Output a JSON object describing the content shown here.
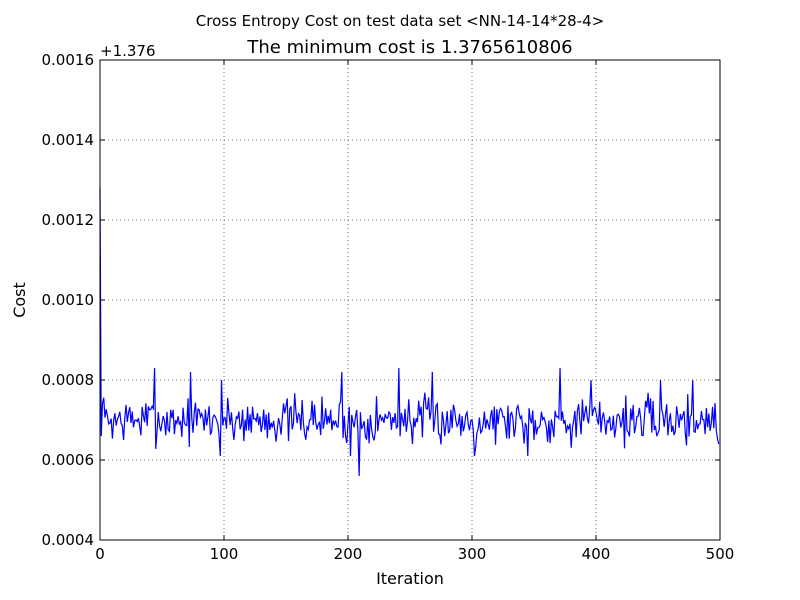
{
  "chart_data": {
    "type": "line",
    "suptitle": "Cross Entropy Cost on test data set <NN-14-14*28-4>",
    "title": "The minimum cost is 1.3765610806",
    "xlabel": "Iteration",
    "ylabel": "Cost",
    "offset_label": "+1.376",
    "xlim": [
      0,
      500
    ],
    "ylim": [
      0.0004,
      0.0016
    ],
    "xticks": [
      0,
      100,
      200,
      300,
      400,
      500
    ],
    "xtick_labels": [
      "0",
      "100",
      "200",
      "300",
      "400",
      "500"
    ],
    "yticks": [
      0.0004,
      0.0006,
      0.0008,
      0.001,
      0.0012,
      0.0014,
      0.0016
    ],
    "ytick_labels": [
      "0.0004",
      "0.0006",
      "0.0008",
      "0.0010",
      "0.0012",
      "0.0014",
      "0.0016"
    ],
    "grid": true,
    "grid_style": "dotted",
    "line_color": "#0000ff",
    "noise": {
      "count": 500,
      "mean": 0.0007,
      "amplitude": 8.5e-05,
      "seed": 7
    },
    "anchors": [
      {
        "x": 0,
        "y": 0.00128
      },
      {
        "x": 1,
        "y": 0.00066
      },
      {
        "x": 2,
        "y": 0.00074
      },
      {
        "x": 44,
        "y": 0.00083
      },
      {
        "x": 73,
        "y": 0.00082
      },
      {
        "x": 97,
        "y": 0.00061
      },
      {
        "x": 98,
        "y": 0.0008
      },
      {
        "x": 195,
        "y": 0.00082
      },
      {
        "x": 202,
        "y": 0.00061
      },
      {
        "x": 209,
        "y": 0.00056
      },
      {
        "x": 241,
        "y": 0.00083
      },
      {
        "x": 268,
        "y": 0.00082
      },
      {
        "x": 302,
        "y": 0.00061
      },
      {
        "x": 345,
        "y": 0.00061
      },
      {
        "x": 371,
        "y": 0.00083
      },
      {
        "x": 396,
        "y": 0.0008
      },
      {
        "x": 452,
        "y": 0.0008
      },
      {
        "x": 478,
        "y": 0.0008
      },
      {
        "x": 499,
        "y": 0.00064
      }
    ]
  }
}
